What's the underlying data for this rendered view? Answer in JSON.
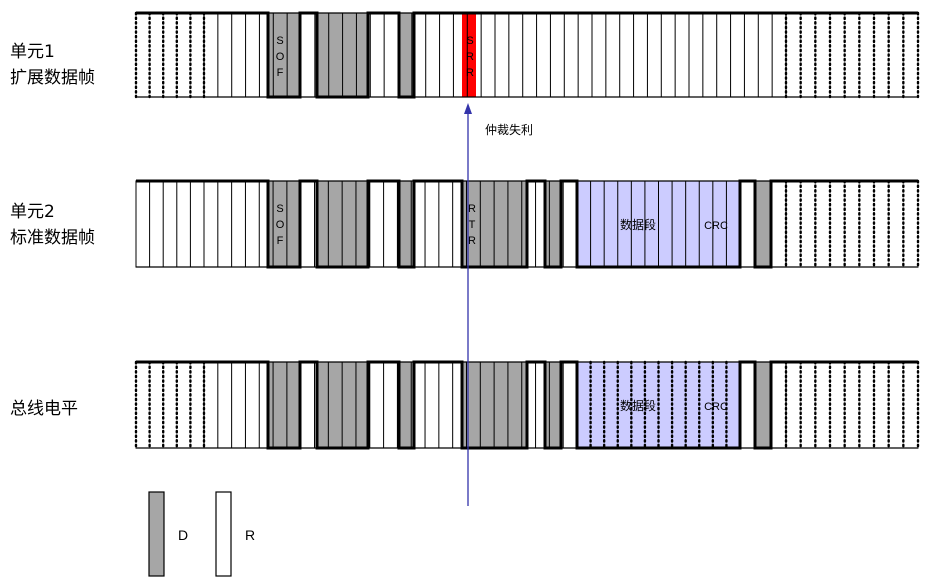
{
  "rows": [
    {
      "id": "extended",
      "label_line1": "单元1",
      "label_line2": "扩展数据帧",
      "field_sof": [
        "S",
        "O",
        "F"
      ],
      "field_srr": [
        "S",
        "R",
        "R"
      ]
    },
    {
      "id": "standard",
      "label_line1": "单元2",
      "label_line2": "标准数据帧",
      "field_sof": [
        "S",
        "O",
        "F"
      ],
      "field_rtr": [
        "R",
        "T",
        "R"
      ],
      "data_label": "数据段",
      "crc_label": "CRC"
    },
    {
      "id": "bus",
      "label_line1": "总线电平",
      "data_label": "数据段",
      "crc_label": "CRC"
    }
  ],
  "annotation": {
    "arbitration_lost": "仲裁失利"
  },
  "legend": {
    "dominant": "D",
    "recessive": "R"
  },
  "colors": {
    "dominant": "#a6a6a6",
    "recessive": "#ffffff",
    "srr_highlight": "#ff0000",
    "data_region": "#ccccff",
    "arrow": "#3333aa"
  }
}
